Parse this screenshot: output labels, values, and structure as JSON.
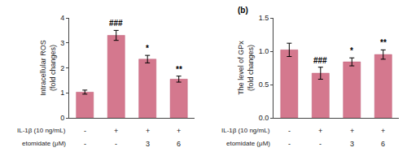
{
  "chart_data": [
    {
      "type": "bar",
      "ylabel": "Intracellular ROS\n(fold changes)",
      "categories": [
        null,
        null,
        null,
        null
      ],
      "values": [
        1.03,
        3.3,
        2.35,
        1.55
      ],
      "errors": [
        0.08,
        0.2,
        0.15,
        0.12
      ],
      "color": "#d4788e",
      "ylim": [
        0,
        4
      ],
      "yticks": [
        0,
        1,
        2,
        3,
        4
      ],
      "annotations": [
        null,
        "###",
        "*",
        "**"
      ],
      "x_rows": [
        {
          "label": "IL-1β (10 ng/mL)",
          "labels": [
            "-",
            "+",
            "+",
            "+"
          ]
        },
        {
          "label": "etomidate (μM)",
          "labels": [
            "-",
            "-",
            "3",
            "6"
          ]
        }
      ],
      "grid": false
    },
    {
      "type": "bar",
      "title": "(b)",
      "ylabel": "The level of GPx\n(fold changes)",
      "categories": [
        null,
        null,
        null,
        null
      ],
      "values": [
        1.02,
        0.67,
        0.84,
        0.95
      ],
      "errors": [
        0.1,
        0.09,
        0.06,
        0.07
      ],
      "color": "#d4788e",
      "ylim": [
        0,
        1.5
      ],
      "yticks": [
        {
          "value": 0,
          "label": "0.0"
        },
        0.5,
        {
          "value": 1,
          "label": "1.0"
        },
        1.5
      ],
      "annotations": [
        null,
        "###",
        "*",
        "**"
      ],
      "x_rows": [
        {
          "label": "IL-1β (10 ng/mL)",
          "labels": [
            "-",
            "+",
            "+",
            "+"
          ]
        },
        {
          "label": "etomidate (μM)",
          "labels": [
            "-",
            "-",
            "3",
            "6"
          ]
        }
      ],
      "grid": false
    }
  ]
}
